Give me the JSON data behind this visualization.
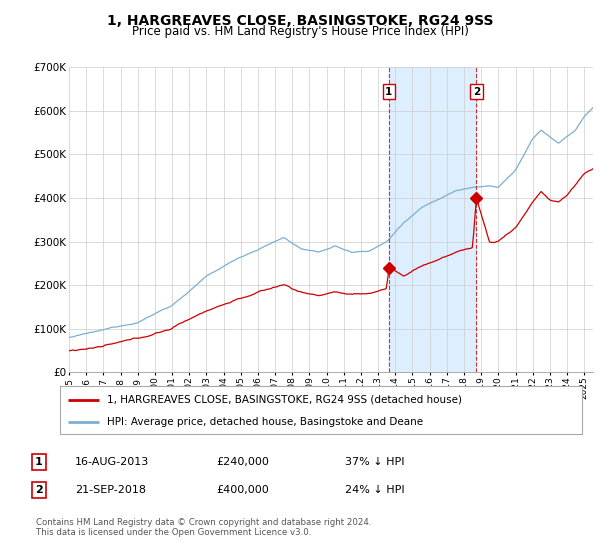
{
  "title": "1, HARGREAVES CLOSE, BASINGSTOKE, RG24 9SS",
  "subtitle": "Price paid vs. HM Land Registry's House Price Index (HPI)",
  "ylim": [
    0,
    700000
  ],
  "yticks": [
    0,
    100000,
    200000,
    300000,
    400000,
    500000,
    600000,
    700000
  ],
  "ytick_labels": [
    "£0",
    "£100K",
    "£200K",
    "£300K",
    "£400K",
    "£500K",
    "£600K",
    "£700K"
  ],
  "xlim_start": 1995.0,
  "xlim_end": 2025.5,
  "hpi_color": "#7bafd4",
  "price_color": "#cc0000",
  "shade_color": "#ddeeff",
  "sale1_date": 2013.62,
  "sale1_price": 240000,
  "sale1_label": "1",
  "sale2_date": 2018.72,
  "sale2_price": 400000,
  "sale2_label": "2",
  "legend_line1": "1, HARGREAVES CLOSE, BASINGSTOKE, RG24 9SS (detached house)",
  "legend_line2": "HPI: Average price, detached house, Basingstoke and Deane",
  "table_row1_num": "1",
  "table_row1_date": "16-AUG-2013",
  "table_row1_price": "£240,000",
  "table_row1_note": "37% ↓ HPI",
  "table_row2_num": "2",
  "table_row2_date": "21-SEP-2018",
  "table_row2_price": "£400,000",
  "table_row2_note": "24% ↓ HPI",
  "footer": "Contains HM Land Registry data © Crown copyright and database right 2024.\nThis data is licensed under the Open Government Licence v3.0.",
  "background_color": "#ffffff",
  "grid_color": "#cccccc"
}
